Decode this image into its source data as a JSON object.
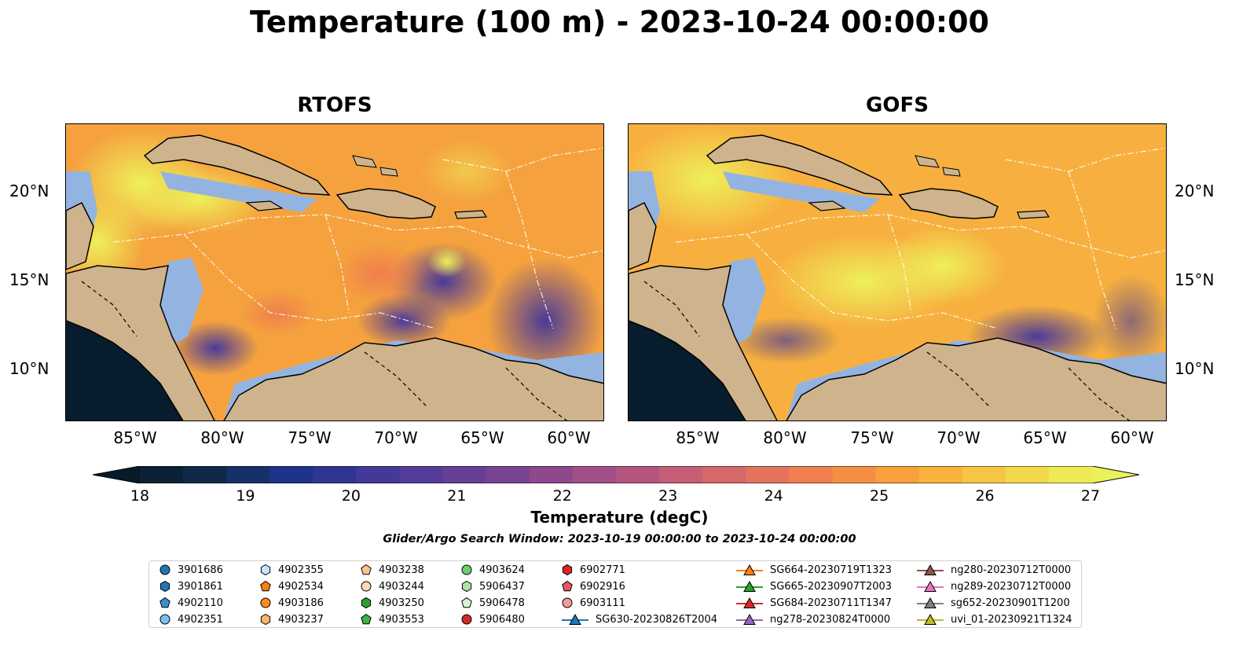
{
  "title": "Temperature (100 m) - 2023-10-24 00:00:00",
  "panels": [
    {
      "title": "RTOFS"
    },
    {
      "title": "GOFS"
    }
  ],
  "axes": {
    "x_ticks": [
      "85°W",
      "80°W",
      "75°W",
      "70°W",
      "65°W",
      "60°W"
    ],
    "y_ticks": [
      "20°N",
      "15°N",
      "10°N"
    ]
  },
  "colorbar": {
    "label": "Temperature (degC)",
    "ticks": [
      "18",
      "19",
      "20",
      "21",
      "22",
      "23",
      "24",
      "25",
      "26",
      "27"
    ],
    "colors": [
      "#0b2236",
      "#10294a",
      "#17306a",
      "#20338a",
      "#303594",
      "#423998",
      "#543d98",
      "#663f96",
      "#7a4392",
      "#8e488e",
      "#a24f88",
      "#b45580",
      "#c65e76",
      "#d6676a",
      "#e4725d",
      "#ef7f4e",
      "#f68e42",
      "#f99f3b",
      "#f9b23b",
      "#f7c545",
      "#f3d84d",
      "#eeea55"
    ],
    "under_color": "#061a2a",
    "over_color": "#eaf25a"
  },
  "search_window": "Glider/Argo Search Window: 2023-10-19 00:00:00 to 2023-10-24 00:00:00",
  "legend": [
    {
      "label": "3901686",
      "marker": "circle",
      "color": "#1f77b4"
    },
    {
      "label": "3901861",
      "marker": "hexagon",
      "color": "#1f77b4"
    },
    {
      "label": "4902110",
      "marker": "pentagon",
      "color": "#3a8fd0"
    },
    {
      "label": "4902351",
      "marker": "circle",
      "color": "#7fc0ee"
    },
    {
      "label": "4902355",
      "marker": "hexagon",
      "color": "#c6e4fa"
    },
    {
      "label": "4902534",
      "marker": "pentagon",
      "color": "#ff7f0e"
    },
    {
      "label": "4903186",
      "marker": "circle",
      "color": "#ff8c1a"
    },
    {
      "label": "4903237",
      "marker": "hexagon",
      "color": "#ffb366"
    },
    {
      "label": "4903238",
      "marker": "pentagon",
      "color": "#ffc48a"
    },
    {
      "label": "4903244",
      "marker": "circle",
      "color": "#ffdcb8"
    },
    {
      "label": "4903250",
      "marker": "hexagon",
      "color": "#2ca02c"
    },
    {
      "label": "4903553",
      "marker": "pentagon",
      "color": "#3cb43c"
    },
    {
      "label": "4903624",
      "marker": "circle",
      "color": "#6ccf6c"
    },
    {
      "label": "5906437",
      "marker": "hexagon",
      "color": "#a7e6a0"
    },
    {
      "label": "5906478",
      "marker": "pentagon",
      "color": "#d4f5cf"
    },
    {
      "label": "5906480",
      "marker": "circle",
      "color": "#d62728"
    },
    {
      "label": "6902771",
      "marker": "hexagon",
      "color": "#d62728"
    },
    {
      "label": "6902916",
      "marker": "pentagon",
      "color": "#e8575d"
    },
    {
      "label": "6903111",
      "marker": "circle",
      "color": "#f29a9a"
    },
    {
      "label": "SG630-20230826T2004",
      "marker": "triangle-line",
      "color": "#1f77b4"
    },
    {
      "label": "SG664-20230719T1323",
      "marker": "triangle-line",
      "color": "#ff7f0e"
    },
    {
      "label": "SG665-20230907T2003",
      "marker": "triangle-line",
      "color": "#2ca02c"
    },
    {
      "label": "SG684-20230711T1347",
      "marker": "triangle-line",
      "color": "#d62728"
    },
    {
      "label": "ng278-20230824T0000",
      "marker": "triangle-line",
      "color": "#9467bd"
    },
    {
      "label": "ng280-20230712T0000",
      "marker": "triangle-line",
      "color": "#8c564b"
    },
    {
      "label": "ng289-20230712T0000",
      "marker": "triangle-line",
      "color": "#e377c2"
    },
    {
      "label": "sg652-20230901T1200",
      "marker": "triangle-line",
      "color": "#7f7f7f"
    },
    {
      "label": "uvi_01-20230921T1324",
      "marker": "triangle-line",
      "color": "#bcbd22"
    }
  ],
  "colors": {
    "land": "#cfb38c",
    "shelf": "#93b4e0",
    "pacific": "#071c2c"
  }
}
